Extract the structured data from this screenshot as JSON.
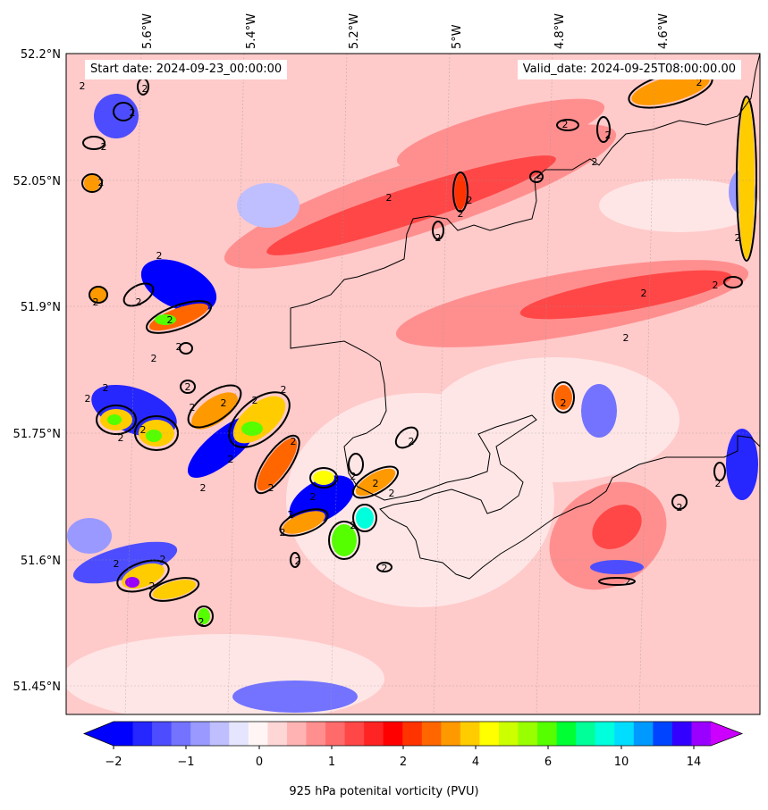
{
  "header": {
    "start_date": "Start date: 2024-09-23_00:00:00",
    "valid_date": "Valid_date: 2024-09-25T08:00:00.00"
  },
  "axes": {
    "lon_labels": [
      "5.6°W",
      "5.4°W",
      "5.2°W",
      "5°W",
      "4.8°W",
      "4.6°W"
    ],
    "lat_labels": [
      "52.2°N",
      "52.05°N",
      "51.9°N",
      "51.75°N",
      "51.6°N",
      "51.45°N"
    ]
  },
  "contour_label": "2",
  "colorbar": {
    "label": "925 hPa potenital vorticity (PVU)",
    "tick_labels": [
      "−2",
      "−1",
      "0",
      "1",
      "2",
      "4",
      "6",
      "10",
      "14"
    ],
    "colors": [
      "#0000ff",
      "#2626ff",
      "#4d4dff",
      "#7373ff",
      "#9999ff",
      "#bfbfff",
      "#e5e5ff",
      "#fff5f5",
      "#ffd6d6",
      "#ffb3b3",
      "#ff8f8f",
      "#ff6b6b",
      "#ff4747",
      "#ff2424",
      "#ff0000",
      "#ff3300",
      "#ff6600",
      "#ff9900",
      "#ffcc00",
      "#ffff00",
      "#ccff00",
      "#99ff00",
      "#55ff00",
      "#00ff33",
      "#00ff99",
      "#00ffdd",
      "#00ddff",
      "#0099ff",
      "#0044ff",
      "#3300ff",
      "#9900ff"
    ],
    "under_color": "#0000ff",
    "over_color": "#cc00ff"
  }
}
